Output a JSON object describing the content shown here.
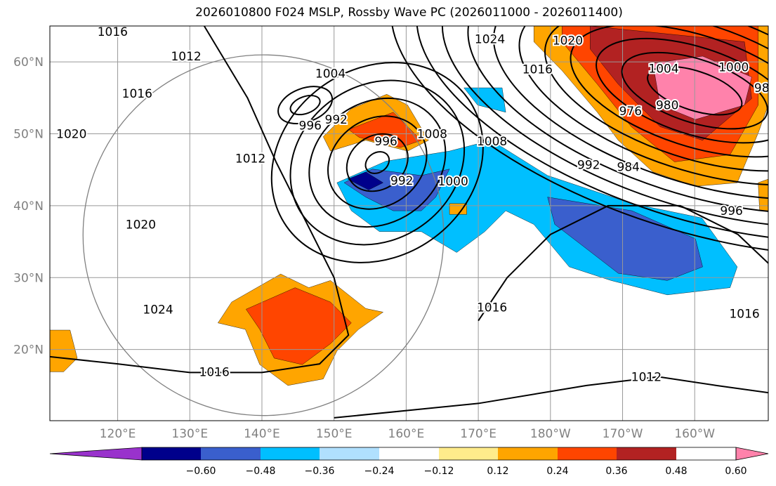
{
  "chart_data": {
    "type": "heatmap",
    "title": "2026010800 F024 MSLP, Rossby Wave PC (2026011000 - 2026011400)",
    "lon_range": [
      110.6,
      210.2
    ],
    "lat_range": [
      10.1,
      65
    ],
    "x_ticks": [
      {
        "lon": 120,
        "label": "120°E"
      },
      {
        "lon": 130,
        "label": "130°E"
      },
      {
        "lon": 140,
        "label": "140°E"
      },
      {
        "lon": 150,
        "label": "150°E"
      },
      {
        "lon": 160,
        "label": "160°E"
      },
      {
        "lon": 170,
        "label": "170°E"
      },
      {
        "lon": 180,
        "label": "180°W"
      },
      {
        "lon": 190,
        "label": "170°W"
      },
      {
        "lon": 200,
        "label": "160°W"
      }
    ],
    "y_ticks": [
      {
        "lat": 60,
        "label": "60°N"
      },
      {
        "lat": 50,
        "label": "50°N"
      },
      {
        "lat": 40,
        "label": "40°N"
      },
      {
        "lat": 30,
        "label": "30°N"
      },
      {
        "lat": 20,
        "label": "20°N"
      }
    ],
    "colorbar": {
      "levels": [
        "−0.60",
        "−0.48",
        "−0.36",
        "−0.24",
        "−0.12",
        "0.12",
        "0.24",
        "0.36",
        "0.48",
        "0.60"
      ],
      "colors": [
        "#9932cc",
        "#00008b",
        "#3a5fcd",
        "#00bfff",
        "#b0e0fe",
        "#ffffff",
        "#ffec8b",
        "#ffa500",
        "#ff4500",
        "#b22222",
        "#ff82ab"
      ],
      "extend": "both"
    },
    "shading": [
      {
        "c": "#ffa500",
        "pts": [
          [
            177.7,
            65
          ],
          [
            210.2,
            65
          ],
          [
            210.2,
            54
          ],
          [
            208.8,
            50.1
          ],
          [
            205.9,
            43.2
          ],
          [
            200.1,
            42.7
          ],
          [
            194.2,
            44.7
          ],
          [
            189.4,
            49.1
          ],
          [
            186.5,
            53
          ],
          [
            181.6,
            58.8
          ],
          [
            177.7,
            62.8
          ]
        ]
      },
      {
        "c": "#ff4500",
        "pts": [
          [
            181.6,
            65
          ],
          [
            208.8,
            65
          ],
          [
            208.8,
            54
          ],
          [
            204.9,
            47.1
          ],
          [
            197.2,
            46.1
          ],
          [
            191.2,
            51
          ],
          [
            186.5,
            56.9
          ],
          [
            181.6,
            62.8
          ]
        ]
      },
      {
        "c": "#b22222",
        "pts": [
          [
            185.5,
            65
          ],
          [
            206.9,
            62.8
          ],
          [
            207.9,
            54.9
          ],
          [
            201.1,
            49.1
          ],
          [
            195.2,
            51
          ],
          [
            189.4,
            56.9
          ],
          [
            185.5,
            61.8
          ]
        ]
      },
      {
        "c": "#ff82ab",
        "pts": [
          [
            194.2,
            59.8
          ],
          [
            201.1,
            60.8
          ],
          [
            207.9,
            57.9
          ],
          [
            206.9,
            54
          ],
          [
            200.1,
            52
          ],
          [
            195.2,
            54
          ]
        ]
      },
      {
        "c": "#ffa500",
        "pts": [
          [
            148.5,
            49.6
          ],
          [
            152.4,
            53.5
          ],
          [
            157.3,
            55.5
          ],
          [
            160.2,
            54
          ],
          [
            163.1,
            49.1
          ],
          [
            160.2,
            47.6
          ],
          [
            154.4,
            49.1
          ],
          [
            149.5,
            47.6
          ]
        ]
      },
      {
        "c": "#ff4500",
        "pts": [
          [
            152.0,
            50.6
          ],
          [
            158.2,
            53
          ],
          [
            162.1,
            49.1
          ],
          [
            159.2,
            48.1
          ],
          [
            153.5,
            49.5
          ]
        ]
      },
      {
        "c": "#00bfff",
        "pts": [
          [
            150.4,
            43.2
          ],
          [
            157.2,
            46.2
          ],
          [
            166,
            47.6
          ],
          [
            171.8,
            49.1
          ],
          [
            179.6,
            44.2
          ],
          [
            191.3,
            40.3
          ],
          [
            201,
            38.3
          ],
          [
            205.9,
            31.5
          ],
          [
            204.9,
            28.6
          ],
          [
            196.2,
            27.6
          ],
          [
            188.4,
            29.6
          ],
          [
            182.6,
            31.5
          ],
          [
            177.7,
            37.4
          ],
          [
            173.8,
            39.3
          ],
          [
            170.9,
            36.4
          ],
          [
            167,
            33.5
          ],
          [
            162.1,
            36.4
          ],
          [
            156.3,
            36.4
          ],
          [
            152.4,
            39.3
          ]
        ]
      },
      {
        "c": "#00bfff",
        "pts": [
          [
            168,
            56.4
          ],
          [
            173.3,
            56.4
          ],
          [
            173.8,
            53
          ],
          [
            169.9,
            54
          ]
        ]
      },
      {
        "c": "#3a5fcd",
        "pts": [
          [
            151.4,
            43.2
          ],
          [
            155.3,
            45.1
          ],
          [
            162.1,
            44.2
          ],
          [
            166,
            45.1
          ],
          [
            164.1,
            41.2
          ],
          [
            162.1,
            39.3
          ],
          [
            158.2,
            39.3
          ],
          [
            154.4,
            41.2
          ]
        ]
      },
      {
        "c": "#3a5fcd",
        "pts": [
          [
            179.6,
            41.2
          ],
          [
            191.3,
            39.3
          ],
          [
            200.1,
            35.4
          ],
          [
            201.1,
            31.5
          ],
          [
            196.2,
            29.6
          ],
          [
            189.4,
            30.6
          ],
          [
            184.5,
            34.4
          ],
          [
            180.6,
            37.4
          ]
        ]
      },
      {
        "c": "#00008b",
        "pts": [
          [
            151.9,
            43.7
          ],
          [
            154.4,
            44.7
          ],
          [
            156.8,
            43.2
          ],
          [
            154.8,
            42.2
          ]
        ]
      },
      {
        "c": "#ffa500",
        "pts": [
          [
            135.8,
            26.6
          ],
          [
            142.6,
            30.5
          ],
          [
            146.5,
            28.6
          ],
          [
            149.5,
            29.6
          ],
          [
            154.4,
            25.7
          ],
          [
            156.8,
            25.2
          ],
          [
            153.4,
            22.8
          ],
          [
            150.4,
            19.8
          ],
          [
            148.5,
            15.9
          ],
          [
            143.6,
            15
          ],
          [
            139.7,
            17.9
          ],
          [
            137.7,
            22.8
          ],
          [
            133.9,
            23.7
          ]
        ]
      },
      {
        "c": "#ff4500",
        "pts": [
          [
            137.8,
            25.6
          ],
          [
            144.6,
            28.6
          ],
          [
            149.5,
            26.6
          ],
          [
            152.4,
            23.7
          ],
          [
            149.5,
            20.8
          ],
          [
            145.6,
            17.9
          ],
          [
            141.7,
            18.8
          ],
          [
            139.7,
            22.8
          ]
        ]
      },
      {
        "c": "#ffa500",
        "pts": [
          [
            110.6,
            22.7
          ],
          [
            113.4,
            22.7
          ],
          [
            114.4,
            18.8
          ],
          [
            112.5,
            16.9
          ],
          [
            110.6,
            16.9
          ]
        ]
      },
      {
        "c": "#ffa500",
        "pts": [
          [
            166,
            40.3
          ],
          [
            168.4,
            40.3
          ],
          [
            168.4,
            38.8
          ],
          [
            166,
            38.8
          ]
        ]
      },
      {
        "c": "#ffa500",
        "pts": [
          [
            208.8,
            43.2
          ],
          [
            210.2,
            43.7
          ],
          [
            210.2,
            39.3
          ],
          [
            209,
            39.3
          ]
        ]
      }
    ],
    "lows": [
      {
        "lon": 200,
        "lat": 56,
        "levels": [
          976,
          980,
          984,
          988,
          992,
          996,
          1000,
          1004,
          1008,
          1012,
          1016
        ]
      },
      {
        "lon": 156,
        "lat": 46,
        "levels": [
          992,
          996,
          1000,
          1004,
          1008,
          1012
        ]
      },
      {
        "lon": 146,
        "lat": 54,
        "levels": [
          996,
          1000
        ]
      }
    ],
    "isobar_lines": [
      {
        "value": 1016,
        "pts": [
          [
            110.6,
            19
          ],
          [
            120,
            18
          ],
          [
            130,
            16.8
          ],
          [
            140,
            16.8
          ],
          [
            148,
            18
          ],
          [
            152,
            22
          ],
          [
            150,
            30
          ],
          [
            146,
            38
          ],
          [
            142,
            46
          ],
          [
            138,
            55
          ],
          [
            132,
            65
          ]
        ]
      },
      {
        "value": 1012,
        "pts": [
          [
            150,
            10.5
          ],
          [
            170,
            12.5
          ],
          [
            185,
            15
          ],
          [
            195,
            16.2
          ],
          [
            203,
            15
          ],
          [
            210.2,
            14
          ]
        ]
      },
      {
        "value": 1016,
        "pts": [
          [
            170,
            24
          ],
          [
            174,
            30
          ],
          [
            180,
            36
          ],
          [
            188,
            40
          ],
          [
            198,
            40
          ],
          [
            206,
            36
          ],
          [
            210.2,
            32
          ]
        ]
      }
    ],
    "contour_labels": [
      {
        "lon": 119.3,
        "lat": 64.2,
        "text": "1016"
      },
      {
        "lon": 171.6,
        "lat": 63.2,
        "text": "1024"
      },
      {
        "lon": 182.4,
        "lat": 63,
        "text": "1020"
      },
      {
        "lon": 129.5,
        "lat": 60.8,
        "text": "1012"
      },
      {
        "lon": 122.7,
        "lat": 55.6,
        "text": "1016"
      },
      {
        "lon": 149.5,
        "lat": 58.4,
        "text": "1004"
      },
      {
        "lon": 178.2,
        "lat": 59,
        "text": "1016"
      },
      {
        "lon": 195.7,
        "lat": 59.1,
        "text": "1004"
      },
      {
        "lon": 205.4,
        "lat": 59.3,
        "text": "1000"
      },
      {
        "lon": 209.3,
        "lat": 56.4,
        "text": "98"
      },
      {
        "lon": 113.6,
        "lat": 50,
        "text": "1020"
      },
      {
        "lon": 146.7,
        "lat": 51.2,
        "text": "996"
      },
      {
        "lon": 150.3,
        "lat": 52,
        "text": "992"
      },
      {
        "lon": 163.6,
        "lat": 50,
        "text": "1008"
      },
      {
        "lon": 171.9,
        "lat": 49,
        "text": "1008"
      },
      {
        "lon": 157.2,
        "lat": 49,
        "text": "996"
      },
      {
        "lon": 191.1,
        "lat": 53.2,
        "text": "976"
      },
      {
        "lon": 196.2,
        "lat": 54,
        "text": "980"
      },
      {
        "lon": 138.4,
        "lat": 46.6,
        "text": "1012"
      },
      {
        "lon": 159.4,
        "lat": 43.5,
        "text": "992"
      },
      {
        "lon": 166.5,
        "lat": 43.4,
        "text": "1000"
      },
      {
        "lon": 185.3,
        "lat": 45.7,
        "text": "992"
      },
      {
        "lon": 190.8,
        "lat": 45.4,
        "text": "984"
      },
      {
        "lon": 205.1,
        "lat": 39.3,
        "text": "996"
      },
      {
        "lon": 123.2,
        "lat": 37.4,
        "text": "1020"
      },
      {
        "lon": 125.6,
        "lat": 25.6,
        "text": "1024"
      },
      {
        "lon": 171.9,
        "lat": 25.9,
        "text": "1016"
      },
      {
        "lon": 206.9,
        "lat": 25,
        "text": "1016"
      },
      {
        "lon": 133.4,
        "lat": 16.9,
        "text": "1016"
      },
      {
        "lon": 193.3,
        "lat": 16.2,
        "text": "1012"
      }
    ],
    "range_circle": {
      "lon": 140.2,
      "lat": 35.9,
      "radius_deg": 25
    }
  }
}
